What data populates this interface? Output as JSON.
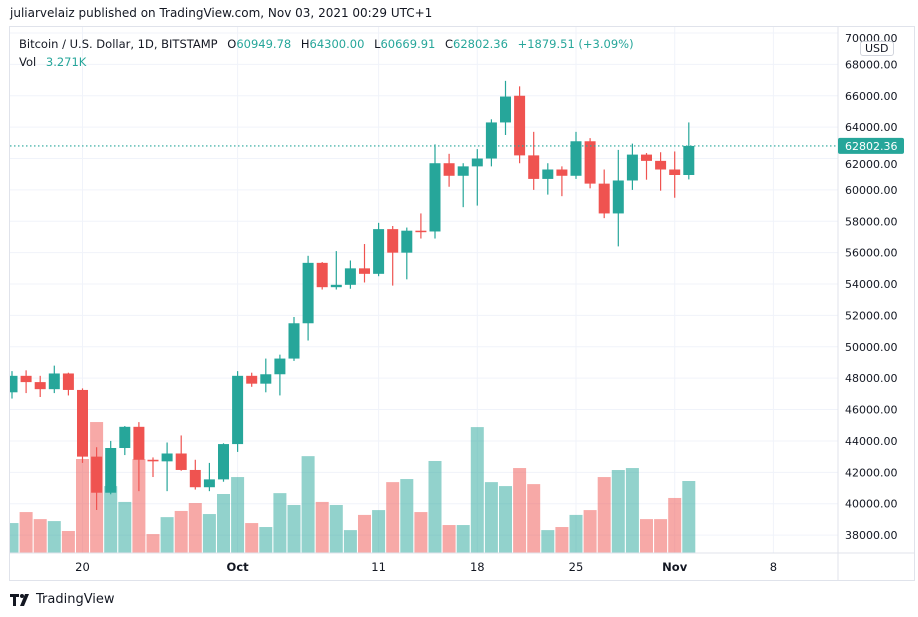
{
  "published": "juliarvelaiz published on TradingView.com, Nov 03, 2021 00:29 UTC+1",
  "legend": {
    "symbol": "Bitcoin / U.S. Dollar, 1D, BITSTAMP",
    "o_label": "O",
    "o": "60949.78",
    "h_label": "H",
    "h": "64300.00",
    "l_label": "L",
    "l": "60669.91",
    "c_label": "C",
    "c": "62802.36",
    "change": "+1879.51 (+3.09%)",
    "vol_label": "Vol",
    "vol": "3.271K"
  },
  "currency_button": "USD",
  "footer": {
    "logo_text": "TradingView",
    "icon": "tradingview-logo-icon"
  },
  "colors": {
    "up": "#26a69a",
    "down": "#ef5350",
    "grid": "#f0f3fa"
  },
  "chart_data": {
    "type": "candlestick",
    "title": "Bitcoin / U.S. Dollar, 1D, BITSTAMP",
    "ylim": [
      37000,
      70500
    ],
    "y_ticks": [
      38000,
      40000,
      42000,
      44000,
      46000,
      48000,
      50000,
      52000,
      54000,
      56000,
      58000,
      60000,
      62000,
      64000,
      66000,
      68000,
      70000
    ],
    "y_tick_labels": [
      "38000.00",
      "40000.00",
      "42000.00",
      "44000.00",
      "46000.00",
      "48000.00",
      "50000.00",
      "52000.00",
      "54000.00",
      "56000.00",
      "58000.00",
      "60000.00",
      "62000.00",
      "64000.00",
      "66000.00",
      "68000.00",
      "70000.00"
    ],
    "x_ticks": [
      {
        "date": "2021-09-20",
        "label": "20"
      },
      {
        "date": "2021-10-01",
        "label": "Oct"
      },
      {
        "date": "2021-10-11",
        "label": "11"
      },
      {
        "date": "2021-10-18",
        "label": "18"
      },
      {
        "date": "2021-10-25",
        "label": "25"
      },
      {
        "date": "2021-11-01",
        "label": "Nov"
      },
      {
        "date": "2021-11-08",
        "label": "8"
      }
    ],
    "last_price": 62802.36,
    "last_price_label": "62802.36",
    "grid": true,
    "columns": [
      "date",
      "open",
      "high",
      "low",
      "close",
      "volume_k"
    ],
    "candles": [
      [
        "2021-09-15",
        47100,
        48450,
        46700,
        48150,
        1.36
      ],
      [
        "2021-09-16",
        48150,
        48500,
        47050,
        47750,
        1.86
      ],
      [
        "2021-09-17",
        47750,
        48150,
        46800,
        47300,
        1.54
      ],
      [
        "2021-09-18",
        47300,
        48800,
        47050,
        48300,
        1.45
      ],
      [
        "2021-09-19",
        48300,
        48350,
        46900,
        47250,
        1.0
      ],
      [
        "2021-09-20",
        47250,
        47350,
        42600,
        43000,
        4.27
      ],
      [
        "2021-09-21",
        43000,
        43600,
        39600,
        40700,
        5.95
      ],
      [
        "2021-09-22",
        40700,
        44000,
        40600,
        43550,
        3.04
      ],
      [
        "2021-09-23",
        43550,
        44950,
        43100,
        44900,
        2.32
      ],
      [
        "2021-09-24",
        44900,
        45200,
        40800,
        42800,
        4.27
      ],
      [
        "2021-09-25",
        42800,
        42950,
        41700,
        42700,
        0.86
      ],
      [
        "2021-09-26",
        42700,
        43900,
        40800,
        43200,
        1.63
      ],
      [
        "2021-09-27",
        43200,
        44350,
        42100,
        42150,
        1.91
      ],
      [
        "2021-09-28",
        42150,
        42800,
        40900,
        41050,
        2.27
      ],
      [
        "2021-09-29",
        41050,
        42600,
        40800,
        41550,
        1.77
      ],
      [
        "2021-09-30",
        41550,
        43850,
        41400,
        43800,
        2.68
      ],
      [
        "2021-10-01",
        43800,
        48450,
        43300,
        48150,
        3.45
      ],
      [
        "2021-10-02",
        48150,
        48350,
        47450,
        47650,
        1.36
      ],
      [
        "2021-10-03",
        47650,
        49250,
        47100,
        48250,
        1.18
      ],
      [
        "2021-10-04",
        48250,
        49500,
        46900,
        49250,
        2.72
      ],
      [
        "2021-10-05",
        49250,
        51900,
        49100,
        51500,
        2.18
      ],
      [
        "2021-10-06",
        51500,
        55800,
        50400,
        55350,
        4.4
      ],
      [
        "2021-10-07",
        55350,
        55400,
        53650,
        53800,
        2.32
      ],
      [
        "2021-10-08",
        53800,
        56100,
        53650,
        53950,
        2.18
      ],
      [
        "2021-10-09",
        53950,
        55500,
        53700,
        55000,
        1.04
      ],
      [
        "2021-10-10",
        55000,
        56550,
        54100,
        54650,
        1.73
      ],
      [
        "2021-10-11",
        54650,
        57900,
        54500,
        57500,
        1.95
      ],
      [
        "2021-10-12",
        57500,
        57700,
        53900,
        56000,
        3.22
      ],
      [
        "2021-10-13",
        56000,
        57600,
        54300,
        57400,
        3.36
      ],
      [
        "2021-10-14",
        57400,
        58500,
        56900,
        57350,
        1.86
      ],
      [
        "2021-10-15",
        57350,
        62900,
        56900,
        61700,
        4.18
      ],
      [
        "2021-10-16",
        61700,
        62300,
        60200,
        60900,
        1.27
      ],
      [
        "2021-10-17",
        60900,
        61700,
        58900,
        61500,
        1.27
      ],
      [
        "2021-10-18",
        61500,
        62600,
        59000,
        62000,
        5.72
      ],
      [
        "2021-10-19",
        62000,
        64500,
        61500,
        64300,
        3.22
      ],
      [
        "2021-10-20",
        64300,
        66950,
        63500,
        65950,
        3.04
      ],
      [
        "2021-10-21",
        66000,
        66600,
        61700,
        62200,
        3.86
      ],
      [
        "2021-10-22",
        62200,
        63700,
        60000,
        60700,
        3.13
      ],
      [
        "2021-10-23",
        60700,
        61700,
        59700,
        61300,
        1.04
      ],
      [
        "2021-10-24",
        61300,
        61500,
        59600,
        60900,
        1.18
      ],
      [
        "2021-10-25",
        60900,
        63700,
        60700,
        63100,
        1.73
      ],
      [
        "2021-10-26",
        63100,
        63300,
        60100,
        60400,
        1.95
      ],
      [
        "2021-10-27",
        60400,
        61300,
        58200,
        58500,
        3.45
      ],
      [
        "2021-10-28",
        58500,
        62550,
        56400,
        60600,
        3.77
      ],
      [
        "2021-10-29",
        60600,
        62950,
        60000,
        62250,
        3.86
      ],
      [
        "2021-10-30",
        62250,
        62350,
        60650,
        61850,
        1.54
      ],
      [
        "2021-10-31",
        61850,
        62400,
        59950,
        61300,
        1.54
      ],
      [
        "2021-11-01",
        61300,
        62450,
        59500,
        60950,
        2.5
      ],
      [
        "2021-11-02",
        60949.78,
        64300,
        60669.91,
        62802.36,
        3.271
      ]
    ]
  }
}
